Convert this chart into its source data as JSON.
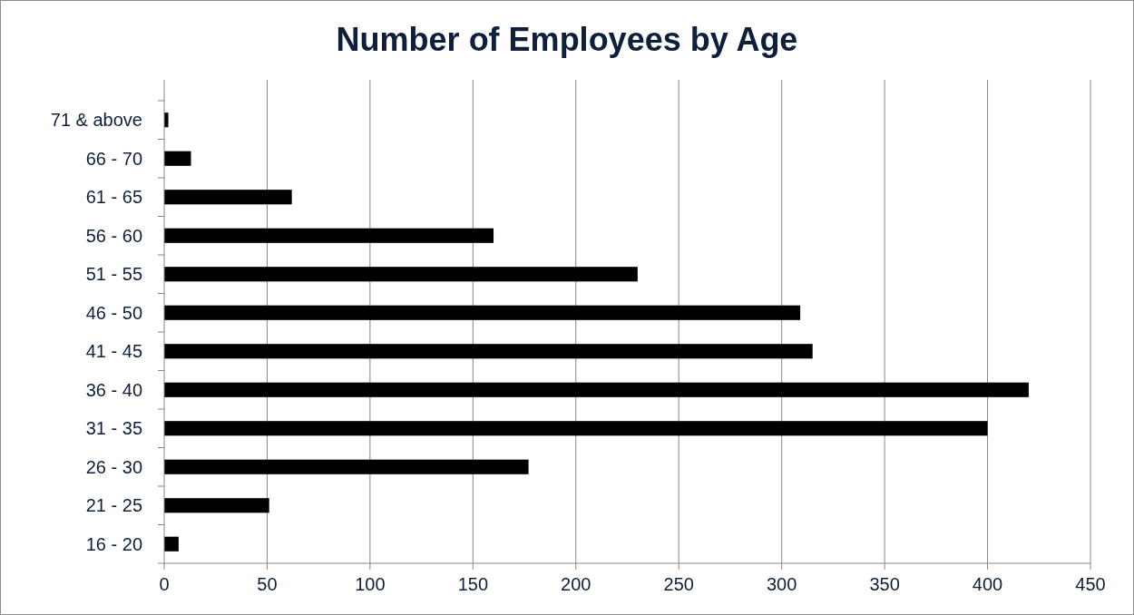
{
  "chart_data": {
    "type": "bar",
    "orientation": "horizontal",
    "title": "Number of Employees by Age",
    "categories": [
      "71 & above",
      "66 - 70",
      "61 - 65",
      "56 - 60",
      "51 - 55",
      "46 - 50",
      "41 - 45",
      "36 - 40",
      "31 - 35",
      "26 - 30",
      "21 - 25",
      "16 - 20"
    ],
    "values": [
      2,
      13,
      62,
      160,
      230,
      309,
      315,
      420,
      400,
      177,
      51,
      7
    ],
    "color": "#000000",
    "xlim": [
      0,
      450
    ],
    "xticks": [
      0,
      50,
      100,
      150,
      200,
      250,
      300,
      350,
      400,
      450
    ],
    "grid": "x"
  }
}
